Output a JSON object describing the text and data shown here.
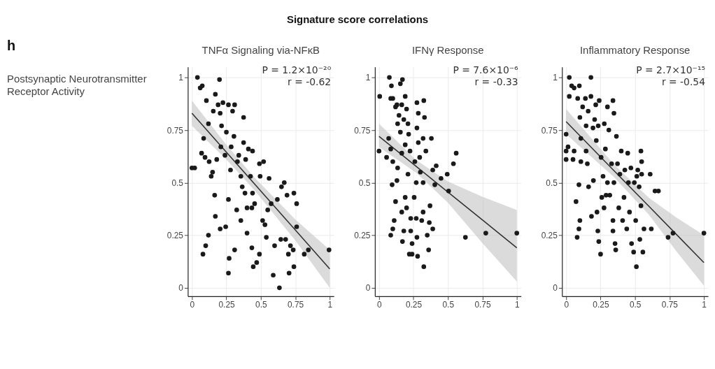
{
  "chart_data": [
    {
      "type": "scatter",
      "title": "TNFα Signaling via-NFκB",
      "annotations": [
        "h",
        "Signature score correlations",
        "Postsynaptic Neurotransmitter Receptor Activity",
        "P = 1.2×10⁻²⁰",
        "r = -0.62"
      ],
      "xlim": [
        -0.03,
        1.03
      ],
      "ylim": [
        -0.04,
        1.05
      ],
      "xticks": [
        0,
        0.25,
        0.5,
        0.75,
        1
      ],
      "yticks": [
        0,
        0.25,
        0.5,
        0.75,
        1
      ],
      "grid": true,
      "series": [
        {
          "color": "#1a1a1a",
          "marker": "circle",
          "x": [
            0,
            0.02,
            0.04,
            0.06,
            0.075,
            0.07,
            0.085,
            0.08,
            0.1,
            0.12,
            0.105,
            0.12,
            0.095,
            0.125,
            0.14,
            0.15,
            0.155,
            0.17,
            0.165,
            0.17,
            0.18,
            0.2,
            0.19,
            0.205,
            0.215,
            0.21,
            0.205,
            0.225,
            0.24,
            0.245,
            0.25,
            0.265,
            0.27,
            0.265,
            0.265,
            0.28,
            0.285,
            0.295,
            0.305,
            0.31,
            0.31,
            0.325,
            0.33,
            0.34,
            0.355,
            0.355,
            0.365,
            0.375,
            0.375,
            0.385,
            0.39,
            0.4,
            0.4,
            0.41,
            0.425,
            0.435,
            0.435,
            0.44,
            0.445,
            0.455,
            0.44,
            0.47,
            0.49,
            0.49,
            0.495,
            0.52,
            0.513,
            0.53,
            0.54,
            0.55,
            0.56,
            0.575,
            0.59,
            0.6,
            0.62,
            0.635,
            0.645,
            0.65,
            0.67,
            0.68,
            0.69,
            0.7,
            0.705,
            0.715,
            0.735,
            0.74,
            0.74,
            0.76,
            0.76,
            0.815,
            0.845,
            0.995
          ],
          "values": [
            0.57,
            0.57,
            1.0,
            0.95,
            0.96,
            0.64,
            0.71,
            0.16,
            0.2,
            0.25,
            0.89,
            0.78,
            0.62,
            0.6,
            0.53,
            0.55,
            0.84,
            0.92,
            0.44,
            0.34,
            0.61,
            0.99,
            0.87,
            0.83,
            0.77,
            0.67,
            0.28,
            0.88,
            0.63,
            0.29,
            0.74,
            0.87,
            0.14,
            0.07,
            0.42,
            0.56,
            0.67,
            0.84,
            0.72,
            0.87,
            0.18,
            0.37,
            0.6,
            0.63,
            0.32,
            0.53,
            0.48,
            0.81,
            0.69,
            0.45,
            0.61,
            0.26,
            0.38,
            0.66,
            0.53,
            0.38,
            0.19,
            0.45,
            0.1,
            0.4,
            0.65,
            0.12,
            0.16,
            0.59,
            0.53,
            0.6,
            0.32,
            0.3,
            0.24,
            0.37,
            0.52,
            0.4,
            0.06,
            0.2,
            0.42,
            0.0,
            0.23,
            0.48,
            0.5,
            0.23,
            0.44,
            0.16,
            0.07,
            0.2,
            0.18,
            0.1,
            0.45,
            0.4,
            0.29,
            0.16,
            0.18,
            0.18
          ]
        },
        {
          "type": "line",
          "color": "#333333",
          "x": [
            0,
            0.25,
            0.45,
            0.75,
            1
          ],
          "values": [
            0.83,
            0.645,
            0.497,
            0.275,
            0.09
          ],
          "lower": [
            0.77,
            0.61,
            0.467,
            0.225,
            0.0
          ],
          "upper": [
            0.89,
            0.68,
            0.527,
            0.325,
            0.18
          ]
        }
      ]
    },
    {
      "type": "scatter",
      "title": "IFNγ Response",
      "annotations": [
        "P = 7.6×10⁻⁶",
        "r = -0.33"
      ],
      "xlim": [
        -0.03,
        1.03
      ],
      "ylim": [
        -0.04,
        1.05
      ],
      "xticks": [
        0,
        0.25,
        0.5,
        0.75,
        1
      ],
      "yticks": [
        0,
        0.25,
        0.5,
        0.75,
        1
      ],
      "grid": true,
      "series": [
        {
          "color": "#1a1a1a",
          "marker": "circle",
          "x": [
            0,
            0.005,
            0.075,
            0.09,
            0.1,
            0.085,
            0.17,
            0.155,
            0.13,
            0.12,
            0.145,
            0.135,
            0.155,
            0.165,
            0.19,
            0.2,
            0.18,
            0.21,
            0.215,
            0.225,
            0.19,
            0.165,
            0.055,
            0.07,
            0.085,
            0.1,
            0.095,
            0.12,
            0.13,
            0.135,
            0.11,
            0.1,
            0.085,
            0.165,
            0.18,
            0.17,
            0.19,
            0.2,
            0.21,
            0.23,
            0.23,
            0.22,
            0.24,
            0.24,
            0.255,
            0.26,
            0.27,
            0.27,
            0.275,
            0.285,
            0.275,
            0.275,
            0.28,
            0.285,
            0.295,
            0.3,
            0.31,
            0.32,
            0.325,
            0.33,
            0.32,
            0.325,
            0.32,
            0.34,
            0.35,
            0.36,
            0.365,
            0.37,
            0.38,
            0.39,
            0.39,
            0.405,
            0.415,
            0.45,
            0.495,
            0.505,
            0.54,
            0.56,
            0.627,
            0.775,
            1.0
          ],
          "values": [
            0.65,
            0.91,
            1.0,
            0.96,
            0.9,
            0.9,
            0.99,
            0.97,
            0.87,
            0.86,
            0.82,
            0.78,
            0.74,
            0.87,
            0.91,
            0.85,
            0.8,
            0.78,
            0.73,
            0.65,
            0.68,
            0.64,
            0.62,
            0.71,
            0.66,
            0.6,
            0.49,
            0.41,
            0.51,
            0.57,
            0.32,
            0.28,
            0.25,
            0.36,
            0.27,
            0.22,
            0.43,
            0.38,
            0.54,
            0.33,
            0.27,
            0.16,
            0.21,
            0.16,
            0.43,
            0.6,
            0.33,
            0.5,
            0.88,
            0.83,
            0.76,
            0.24,
            0.15,
            0.69,
            0.62,
            0.55,
            0.32,
            0.36,
            0.89,
            0.81,
            0.71,
            0.1,
            0.5,
            0.65,
            0.25,
            0.18,
            0.31,
            0.39,
            0.71,
            0.56,
            0.28,
            0.49,
            0.58,
            0.52,
            0.54,
            0.46,
            0.59,
            0.64,
            0.24,
            0.26,
            0.26
          ]
        },
        {
          "type": "line",
          "color": "#333333",
          "x": [
            0,
            0.27,
            0.5,
            0.75,
            1
          ],
          "values": [
            0.72,
            0.577,
            0.455,
            0.323,
            0.19
          ],
          "lower": [
            0.67,
            0.547,
            0.405,
            0.213,
            0.03
          ],
          "upper": [
            0.78,
            0.607,
            0.505,
            0.433,
            0.37
          ]
        }
      ]
    },
    {
      "type": "scatter",
      "title": "Inflammatory Response",
      "annotations": [
        "P = 2.7×10⁻¹⁵",
        "r = -0.54"
      ],
      "xlim": [
        -0.03,
        1.03
      ],
      "ylim": [
        -0.04,
        1.05
      ],
      "xticks": [
        0,
        0.25,
        0.5,
        0.75,
        1
      ],
      "yticks": [
        0,
        0.25,
        0.5,
        0.75,
        1
      ],
      "grid": true,
      "series": [
        {
          "color": "#1a1a1a",
          "marker": "circle",
          "x": [
            0,
            0,
            0,
            0.014,
            0.023,
            0.023,
            0.04,
            0.058,
            0.05,
            0.058,
            0.072,
            0.08,
            0.093,
            0.096,
            0.084,
            0.093,
            0.1,
            0.1,
            0.107,
            0.107,
            0.12,
            0.14,
            0.145,
            0.145,
            0.154,
            0.163,
            0.16,
            0.18,
            0.18,
            0.184,
            0.198,
            0.195,
            0.207,
            0.215,
            0.219,
            0.224,
            0.23,
            0.237,
            0.233,
            0.24,
            0.25,
            0.254,
            0.259,
            0.268,
            0.277,
            0.275,
            0.285,
            0.29,
            0.3,
            0.3,
            0.31,
            0.317,
            0.33,
            0.34,
            0.34,
            0.34,
            0.347,
            0.347,
            0.355,
            0.36,
            0.365,
            0.373,
            0.382,
            0.39,
            0.4,
            0.41,
            0.42,
            0.426,
            0.44,
            0.447,
            0.452,
            0.46,
            0.47,
            0.475,
            0.49,
            0.495,
            0.505,
            0.51,
            0.513,
            0.52,
            0.53,
            0.535,
            0.543,
            0.543,
            0.557,
            0.548,
            0.548,
            0.565,
            0.61,
            0.618,
            0.645,
            0.67,
            0.74,
            0.776,
            1.0
          ],
          "values": [
            0.73,
            0.65,
            0.61,
            0.67,
            1.0,
            0.91,
            0.96,
            0.95,
            0.61,
            0.65,
            0.41,
            0.24,
            0.28,
            0.96,
            0.9,
            0.49,
            0.32,
            0.81,
            0.71,
            0.6,
            0.86,
            0.9,
            0.77,
            0.65,
            0.59,
            0.48,
            0.84,
            1.0,
            0.91,
            0.34,
            0.51,
            0.76,
            0.8,
            0.87,
            0.7,
            0.36,
            0.27,
            0.22,
            0.77,
            0.89,
            0.16,
            0.62,
            0.43,
            0.53,
            0.78,
            0.38,
            0.66,
            0.44,
            0.86,
            0.5,
            0.75,
            0.44,
            0.59,
            0.89,
            0.32,
            0.27,
            0.83,
            0.5,
            0.21,
            0.18,
            0.72,
            0.59,
            0.38,
            0.54,
            0.65,
            0.32,
            0.43,
            0.56,
            0.28,
            0.64,
            0.5,
            0.36,
            0.57,
            0.21,
            0.17,
            0.5,
            0.32,
            0.1,
            0.53,
            0.56,
            0.48,
            0.23,
            0.39,
            0.65,
            0.17,
            0.6,
            0.54,
            0.28,
            0.54,
            0.28,
            0.46,
            0.46,
            0.24,
            0.26,
            0.26
          ]
        },
        {
          "type": "line",
          "color": "#333333",
          "x": [
            0,
            0.35,
            0.6,
            0.8,
            1
          ],
          "values": [
            0.79,
            0.555,
            0.388,
            0.254,
            0.12
          ],
          "lower": [
            0.73,
            0.525,
            0.348,
            0.174,
            0.01
          ],
          "upper": [
            0.85,
            0.585,
            0.428,
            0.334,
            0.25
          ]
        }
      ]
    }
  ]
}
